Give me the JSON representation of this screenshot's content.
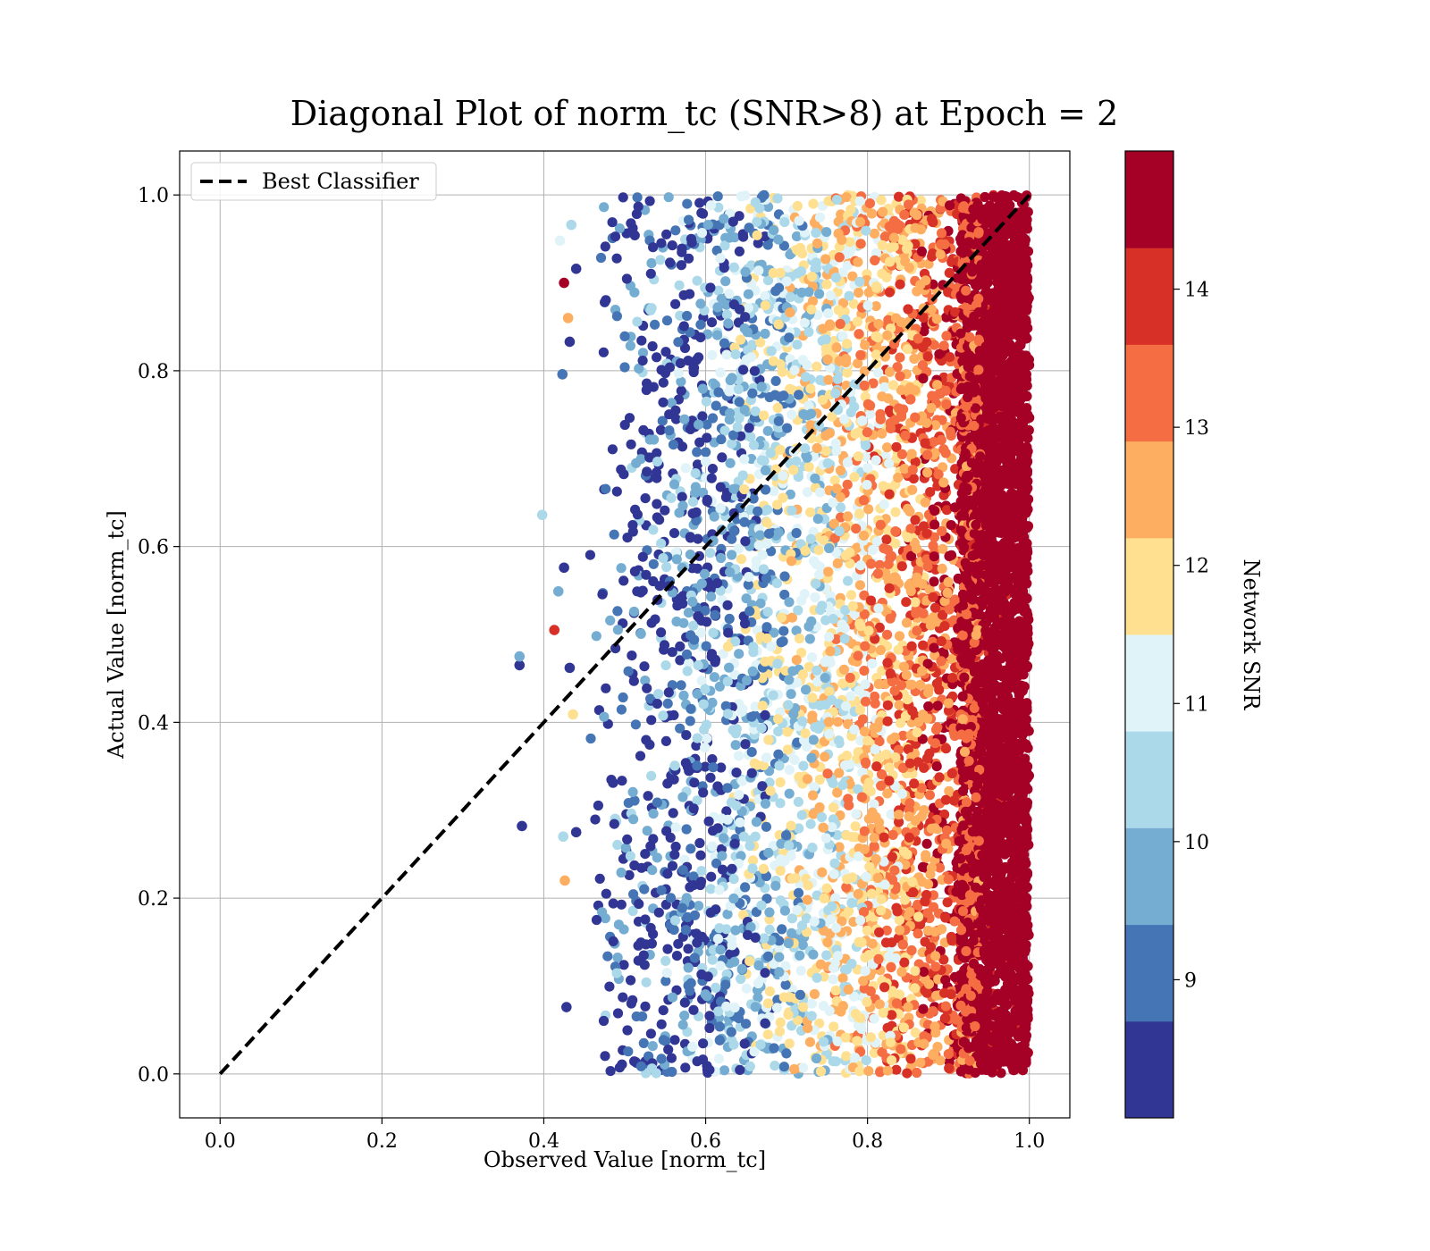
{
  "chart_data": {
    "type": "scatter",
    "title": "Diagonal Plot of norm_tc (SNR>8) at Epoch = 2",
    "xlabel": "Observed Value [norm_tc]",
    "ylabel": "Actual Value [norm_tc]",
    "xlim": [
      -0.05,
      1.05
    ],
    "ylim": [
      -0.05,
      1.05
    ],
    "xticks": [
      "0.0",
      "0.2",
      "0.4",
      "0.6",
      "0.8",
      "1.0"
    ],
    "yticks": [
      "0.0",
      "0.2",
      "0.4",
      "0.6",
      "0.8",
      "1.0"
    ],
    "grid": true,
    "legend": {
      "position": "upper-left",
      "entries": [
        {
          "label": "Best Classifier",
          "style": "dashed",
          "color": "#000000"
        }
      ]
    },
    "reference_line": {
      "label": "Best Classifier",
      "x": [
        0.0,
        1.0
      ],
      "y": [
        0.0,
        1.0
      ],
      "style": "dashed"
    },
    "scatter_description": {
      "x_range": [
        0.45,
        1.0
      ],
      "y_range": [
        0.0,
        1.0
      ],
      "color_trend": "SNR increases with observed value; points near x=1.0 are predominantly high SNR (dark red)"
    },
    "outliers": [
      {
        "x": 0.37,
        "y": 0.465,
        "snr": 8.2
      },
      {
        "x": 0.37,
        "y": 0.475,
        "snr": 9.8
      },
      {
        "x": 0.373,
        "y": 0.282,
        "snr": 8.2
      },
      {
        "x": 0.398,
        "y": 0.636,
        "snr": 10.5
      },
      {
        "x": 0.413,
        "y": 0.505,
        "snr": 13.8
      },
      {
        "x": 0.418,
        "y": 0.549,
        "snr": 9.8
      },
      {
        "x": 0.42,
        "y": 0.948,
        "snr": 11.2
      },
      {
        "x": 0.423,
        "y": 0.796,
        "snr": 9.2
      },
      {
        "x": 0.424,
        "y": 0.27,
        "snr": 10.5
      },
      {
        "x": 0.425,
        "y": 0.9,
        "snr": 14.5
      },
      {
        "x": 0.425,
        "y": 0.576,
        "snr": 8.2
      },
      {
        "x": 0.426,
        "y": 0.22,
        "snr": 12.4
      },
      {
        "x": 0.428,
        "y": 0.076,
        "snr": 8.2
      },
      {
        "x": 0.43,
        "y": 0.86,
        "snr": 12.4
      },
      {
        "x": 0.432,
        "y": 0.833,
        "snr": 8.2
      },
      {
        "x": 0.434,
        "y": 0.966,
        "snr": 10.5
      },
      {
        "x": 0.432,
        "y": 0.462,
        "snr": 8.2
      },
      {
        "x": 0.436,
        "y": 0.409,
        "snr": 12.0
      },
      {
        "x": 0.44,
        "y": 0.916,
        "snr": 8.2
      },
      {
        "x": 0.44,
        "y": 0.275,
        "snr": 8.2
      }
    ],
    "colorbar": {
      "label": "Network SNR",
      "range": [
        8.0,
        15.0
      ],
      "ticks": [
        "9",
        "10",
        "11",
        "12",
        "13",
        "14"
      ],
      "tick_values": [
        9,
        10,
        11,
        12,
        13,
        14
      ],
      "bins": [
        {
          "from": 8.0,
          "to": 8.7,
          "color": "#313695"
        },
        {
          "from": 8.7,
          "to": 9.4,
          "color": "#4575b4"
        },
        {
          "from": 9.4,
          "to": 10.1,
          "color": "#74add1"
        },
        {
          "from": 10.1,
          "to": 10.8,
          "color": "#abd9e9"
        },
        {
          "from": 10.8,
          "to": 11.5,
          "color": "#e0f3f8"
        },
        {
          "from": 11.5,
          "to": 12.2,
          "color": "#fee090"
        },
        {
          "from": 12.2,
          "to": 12.9,
          "color": "#fdae61"
        },
        {
          "from": 12.9,
          "to": 13.6,
          "color": "#f46d43"
        },
        {
          "from": 13.6,
          "to": 14.3,
          "color": "#d73027"
        },
        {
          "from": 14.3,
          "to": 15.0,
          "color": "#a50026"
        }
      ]
    }
  }
}
